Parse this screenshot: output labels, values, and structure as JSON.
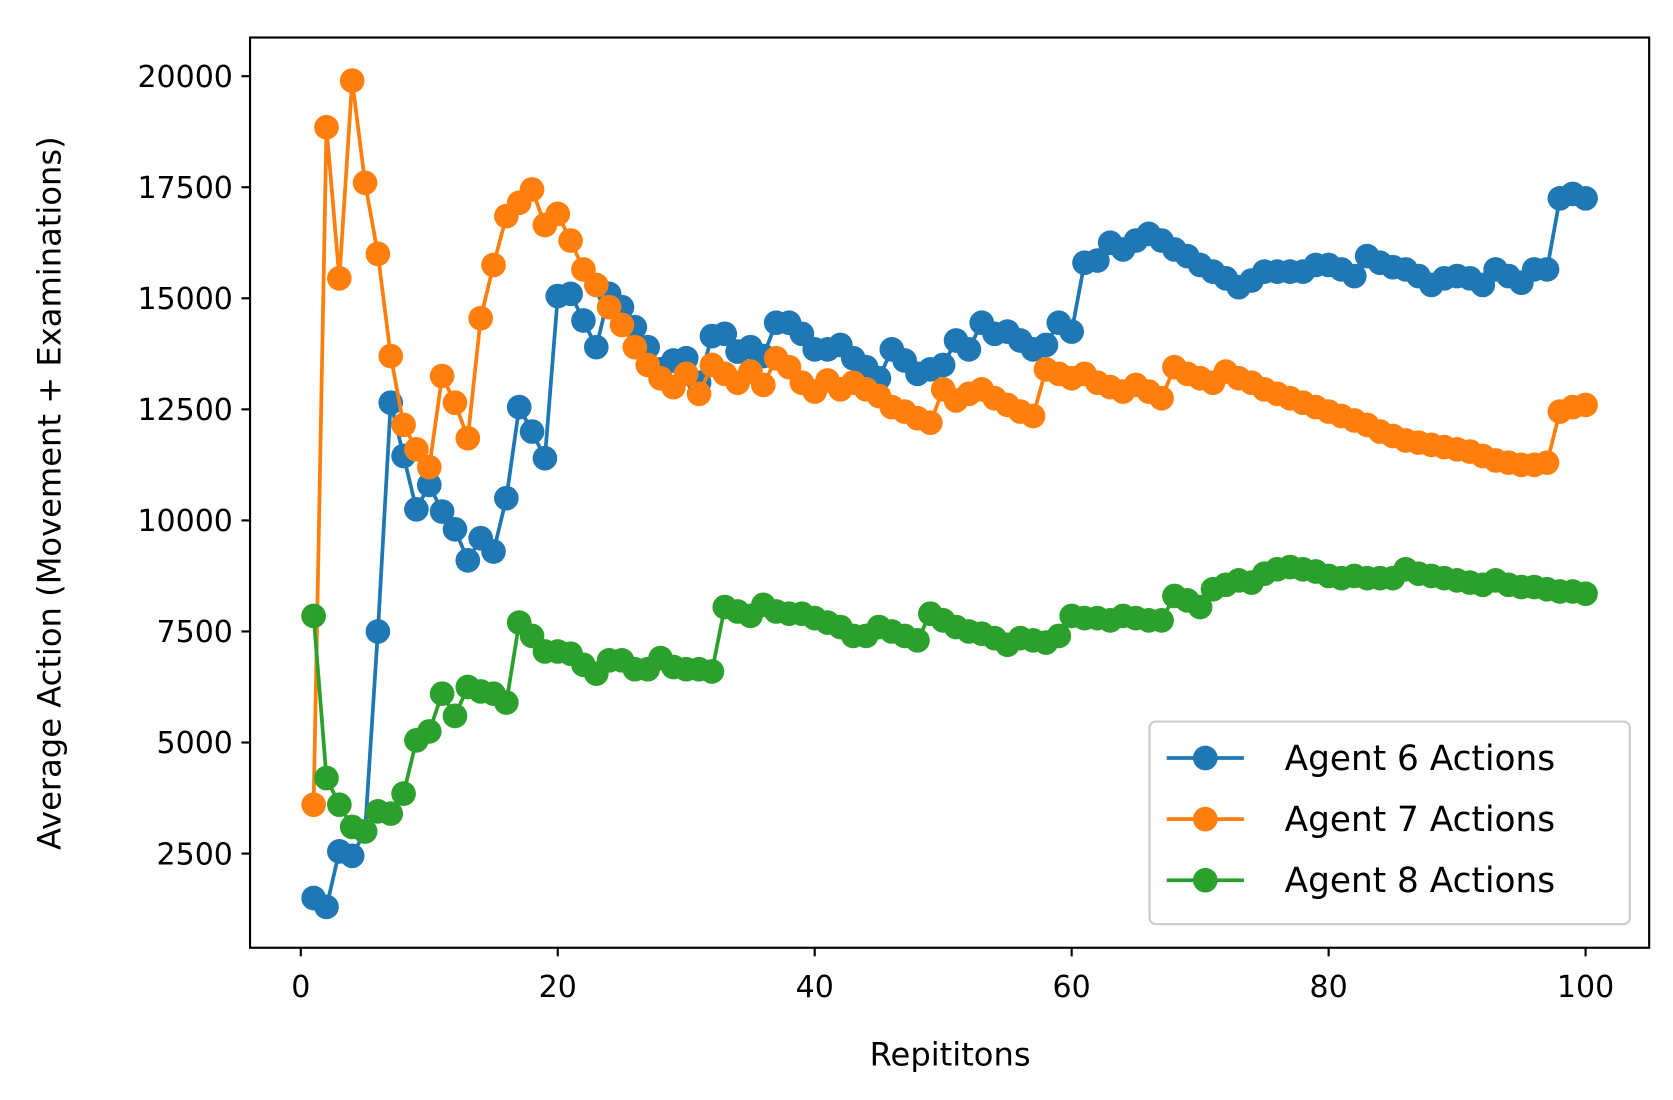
{
  "chart_data": {
    "type": "line",
    "xlabel": "Repititons",
    "ylabel": "Average Action (Movement + Examinations)",
    "x": [
      1,
      2,
      3,
      4,
      5,
      6,
      7,
      8,
      9,
      10,
      11,
      12,
      13,
      14,
      15,
      16,
      17,
      18,
      19,
      20,
      21,
      22,
      23,
      24,
      25,
      26,
      27,
      28,
      29,
      30,
      31,
      32,
      33,
      34,
      35,
      36,
      37,
      38,
      39,
      40,
      41,
      42,
      43,
      44,
      45,
      46,
      47,
      48,
      49,
      50,
      51,
      52,
      53,
      54,
      55,
      56,
      57,
      58,
      59,
      60,
      61,
      62,
      63,
      64,
      65,
      66,
      67,
      68,
      69,
      70,
      71,
      72,
      73,
      74,
      75,
      76,
      77,
      78,
      79,
      80,
      81,
      82,
      83,
      84,
      85,
      86,
      87,
      88,
      89,
      90,
      91,
      92,
      93,
      94,
      95,
      96,
      97,
      98,
      99,
      100
    ],
    "series": [
      {
        "name": "Agent 6 Actions",
        "color": "#1f77b4",
        "values": [
          1500,
          1300,
          2550,
          2450,
          3000,
          7500,
          12650,
          11450,
          10250,
          10800,
          10200,
          9800,
          9100,
          9600,
          9300,
          10500,
          12550,
          12000,
          11400,
          15050,
          15100,
          14500,
          13900,
          15100,
          14800,
          14350,
          13900,
          13400,
          13600,
          13650,
          13100,
          14150,
          14200,
          13800,
          13900,
          13700,
          14450,
          14450,
          14200,
          13850,
          13850,
          13950,
          13650,
          13450,
          13200,
          13850,
          13600,
          13300,
          13400,
          13500,
          14050,
          13850,
          14450,
          14200,
          14250,
          14050,
          13850,
          13950,
          14450,
          14250,
          15800,
          15850,
          16250,
          16100,
          16300,
          16450,
          16300,
          16100,
          15950,
          15750,
          15600,
          15450,
          15250,
          15400,
          15600,
          15600,
          15600,
          15600,
          15750,
          15750,
          15650,
          15500,
          15950,
          15800,
          15700,
          15650,
          15500,
          15300,
          15450,
          15500,
          15450,
          15300,
          15650,
          15500,
          15350,
          15650,
          15650,
          17250,
          17350,
          17250
        ]
      },
      {
        "name": "Agent 7 Actions",
        "color": "#ff7f0e",
        "values": [
          3600,
          18850,
          15450,
          19900,
          17600,
          16000,
          13700,
          12150,
          11600,
          11200,
          13250,
          12650,
          11850,
          14550,
          15750,
          16850,
          17150,
          17450,
          16650,
          16900,
          16300,
          15650,
          15300,
          14800,
          14400,
          13900,
          13500,
          13200,
          13000,
          13300,
          12850,
          13500,
          13300,
          13100,
          13350,
          13050,
          13650,
          13450,
          13100,
          12900,
          13150,
          12950,
          13100,
          12950,
          12800,
          12550,
          12450,
          12300,
          12200,
          12950,
          12700,
          12850,
          12950,
          12750,
          12600,
          12450,
          12350,
          13400,
          13300,
          13200,
          13300,
          13100,
          13000,
          12900,
          13050,
          12900,
          12750,
          13450,
          13300,
          13200,
          13100,
          13350,
          13200,
          13100,
          12950,
          12850,
          12750,
          12650,
          12550,
          12450,
          12350,
          12250,
          12150,
          12000,
          11900,
          11800,
          11750,
          11700,
          11650,
          11600,
          11550,
          11450,
          11350,
          11300,
          11250,
          11250,
          11300,
          12450,
          12550,
          12600
        ]
      },
      {
        "name": "Agent 8 Actions",
        "color": "#2ca02c",
        "values": [
          7850,
          4200,
          3600,
          3100,
          3000,
          3450,
          3400,
          3850,
          5050,
          5250,
          6100,
          5600,
          6250,
          6150,
          6100,
          5900,
          7700,
          7400,
          7050,
          7050,
          7000,
          6750,
          6550,
          6850,
          6850,
          6650,
          6650,
          6900,
          6700,
          6650,
          6650,
          6600,
          8050,
          7950,
          7850,
          8100,
          7950,
          7900,
          7900,
          7800,
          7700,
          7600,
          7400,
          7400,
          7600,
          7500,
          7400,
          7300,
          7900,
          7750,
          7600,
          7500,
          7450,
          7350,
          7200,
          7350,
          7300,
          7250,
          7400,
          7850,
          7800,
          7800,
          7750,
          7850,
          7800,
          7750,
          7750,
          8300,
          8200,
          8050,
          8450,
          8550,
          8650,
          8600,
          8800,
          8900,
          8950,
          8900,
          8850,
          8750,
          8700,
          8750,
          8700,
          8700,
          8700,
          8900,
          8800,
          8750,
          8700,
          8650,
          8600,
          8550,
          8650,
          8550,
          8500,
          8500,
          8450,
          8400,
          8400,
          8350
        ]
      }
    ],
    "xlim": [
      -3.95,
      104.95
    ],
    "ylim": [
      380,
      20870
    ],
    "xticks": [
      0,
      20,
      40,
      60,
      80,
      100
    ],
    "yticks": [
      2500,
      5000,
      7500,
      10000,
      12500,
      15000,
      17500,
      20000
    ],
    "legend": "lower right",
    "marker": "o"
  }
}
